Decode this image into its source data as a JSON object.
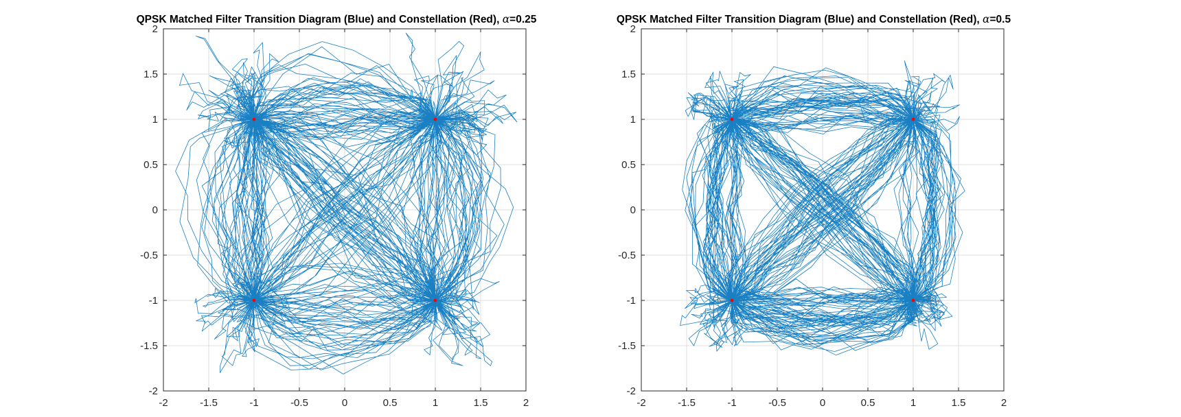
{
  "chart_data": [
    {
      "type": "line",
      "title_prefix": "QPSK Matched Filter Transition Diagram (Blue) and Constellation (Red), ",
      "title_symbol": "α",
      "title_suffix": "=0.25",
      "alpha": 0.25,
      "xlim": [
        -2,
        2
      ],
      "ylim": [
        -2,
        2
      ],
      "xticks": [
        "-2",
        "-1.5",
        "-1",
        "-0.5",
        "0",
        "0.5",
        "1",
        "1.5",
        "2"
      ],
      "yticks": [
        "2",
        "1.5",
        "1",
        "0.5",
        "0",
        "-0.5",
        "-1",
        "-1.5",
        "-2"
      ],
      "grid": true,
      "constellation": [
        [
          -1,
          1
        ],
        [
          1,
          1
        ],
        [
          -1,
          -1
        ],
        [
          1,
          -1
        ]
      ],
      "trace_color": "#0072BD",
      "constellation_color": "#FF0000"
    },
    {
      "type": "line",
      "title_prefix": "QPSK Matched Filter Transition Diagram (Blue) and Constellation (Red), ",
      "title_symbol": "α",
      "title_suffix": "=0.5",
      "alpha": 0.5,
      "xlim": [
        -2,
        2
      ],
      "ylim": [
        -2,
        2
      ],
      "xticks": [
        "-2",
        "-1.5",
        "-1",
        "-0.5",
        "0",
        "0.5",
        "1",
        "1.5",
        "2"
      ],
      "yticks": [
        "2",
        "1.5",
        "1",
        "0.5",
        "0",
        "-0.5",
        "-1",
        "-1.5",
        "-2"
      ],
      "grid": true,
      "constellation": [
        [
          -1,
          1
        ],
        [
          1,
          1
        ],
        [
          -1,
          -1
        ],
        [
          1,
          -1
        ]
      ],
      "trace_color": "#0072BD",
      "constellation_color": "#FF0000"
    }
  ]
}
